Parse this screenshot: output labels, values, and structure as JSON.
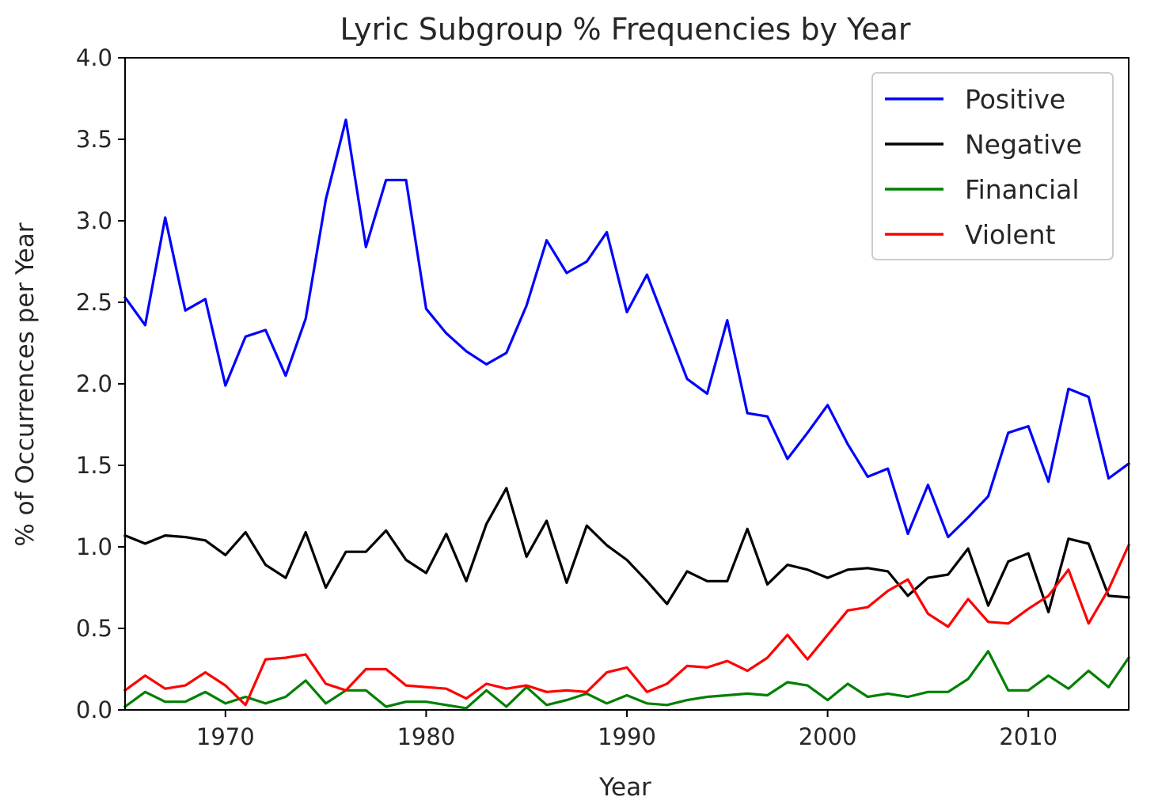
{
  "chart_data": {
    "type": "line",
    "title": "Lyric Subgroup % Frequencies by Year",
    "xlabel": "Year",
    "ylabel": "% of Occurrences per Year",
    "xlim": [
      1965,
      2015
    ],
    "ylim": [
      0,
      4
    ],
    "xticks": [
      1970,
      1980,
      1990,
      2000,
      2010
    ],
    "yticks": [
      "0.0",
      "0.5",
      "1.0",
      "1.5",
      "2.0",
      "2.5",
      "3.0",
      "3.5",
      "4.0"
    ],
    "legend_position": "top-right",
    "grid": false,
    "x": [
      1965,
      1966,
      1967,
      1968,
      1969,
      1970,
      1971,
      1972,
      1973,
      1974,
      1975,
      1976,
      1977,
      1978,
      1979,
      1980,
      1981,
      1982,
      1983,
      1984,
      1985,
      1986,
      1987,
      1988,
      1989,
      1990,
      1991,
      1992,
      1993,
      1994,
      1995,
      1996,
      1997,
      1998,
      1999,
      2000,
      2001,
      2002,
      2003,
      2004,
      2005,
      2006,
      2007,
      2008,
      2009,
      2010,
      2011,
      2012,
      2013,
      2014,
      2015
    ],
    "series": [
      {
        "name": "Positive",
        "color": "#0000ff",
        "values": [
          2.53,
          2.36,
          3.02,
          2.45,
          2.52,
          1.99,
          2.29,
          2.33,
          2.05,
          2.4,
          3.13,
          3.62,
          2.84,
          3.25,
          3.25,
          2.46,
          2.31,
          2.2,
          2.12,
          2.19,
          2.48,
          2.88,
          2.68,
          2.75,
          2.93,
          2.44,
          2.67,
          2.35,
          2.03,
          1.94,
          2.39,
          1.82,
          1.8,
          1.54,
          1.7,
          1.87,
          1.63,
          1.43,
          1.48,
          1.08,
          1.38,
          1.06,
          1.18,
          1.31,
          1.7,
          1.74,
          1.4,
          1.97,
          1.92,
          1.42,
          1.51
        ]
      },
      {
        "name": "Negative",
        "color": "#000000",
        "values": [
          1.07,
          1.02,
          1.07,
          1.06,
          1.04,
          0.95,
          1.09,
          0.89,
          0.81,
          1.09,
          0.75,
          0.97,
          0.97,
          1.1,
          0.92,
          0.84,
          1.08,
          0.79,
          1.14,
          1.36,
          0.94,
          1.16,
          0.78,
          1.13,
          1.01,
          0.92,
          0.79,
          0.65,
          0.85,
          0.79,
          0.79,
          1.11,
          0.77,
          0.89,
          0.86,
          0.81,
          0.86,
          0.87,
          0.85,
          0.7,
          0.81,
          0.83,
          0.99,
          0.64,
          0.91,
          0.96,
          0.6,
          1.05,
          1.02,
          0.7,
          0.69
        ]
      },
      {
        "name": "Financial",
        "color": "#008000",
        "values": [
          0.02,
          0.11,
          0.05,
          0.05,
          0.11,
          0.04,
          0.08,
          0.04,
          0.08,
          0.18,
          0.04,
          0.12,
          0.12,
          0.02,
          0.05,
          0.05,
          0.03,
          0.01,
          0.12,
          0.02,
          0.14,
          0.03,
          0.06,
          0.1,
          0.04,
          0.09,
          0.04,
          0.03,
          0.06,
          0.08,
          0.09,
          0.1,
          0.09,
          0.17,
          0.15,
          0.06,
          0.16,
          0.08,
          0.1,
          0.08,
          0.11,
          0.11,
          0.19,
          0.36,
          0.12,
          0.12,
          0.21,
          0.13,
          0.24,
          0.14,
          0.32
        ]
      },
      {
        "name": "Violent",
        "color": "#ff0000",
        "values": [
          0.12,
          0.21,
          0.13,
          0.15,
          0.23,
          0.15,
          0.03,
          0.31,
          0.32,
          0.34,
          0.16,
          0.12,
          0.25,
          0.25,
          0.15,
          0.14,
          0.13,
          0.07,
          0.16,
          0.13,
          0.15,
          0.11,
          0.12,
          0.11,
          0.23,
          0.26,
          0.11,
          0.16,
          0.27,
          0.26,
          0.3,
          0.24,
          0.32,
          0.46,
          0.31,
          0.46,
          0.61,
          0.63,
          0.73,
          0.8,
          0.59,
          0.51,
          0.68,
          0.54,
          0.53,
          0.62,
          0.7,
          0.86,
          0.53,
          0.74,
          1.01
        ]
      }
    ]
  }
}
